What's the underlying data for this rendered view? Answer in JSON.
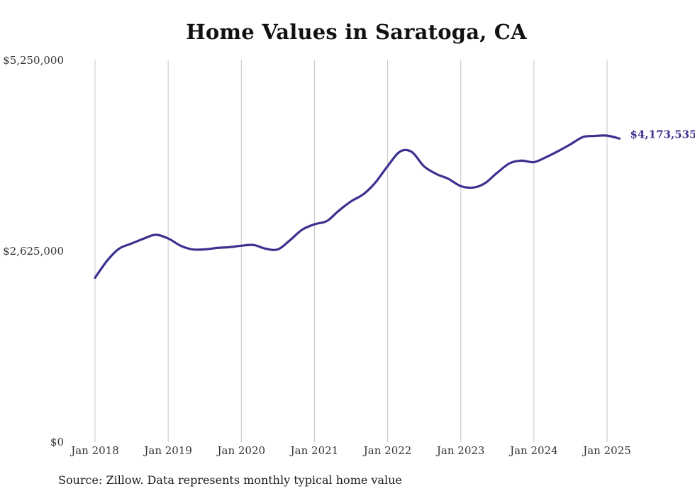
{
  "chart_data": {
    "type": "line",
    "title": "Home Values in Saratoga, CA",
    "xlabel": "",
    "ylabel": "",
    "ylim": [
      0,
      5250000
    ],
    "y_ticks": [
      0,
      2625000,
      5250000
    ],
    "y_tick_labels": [
      "$0",
      "$2,625,000",
      "$5,250,000"
    ],
    "x_ticks": [
      2018,
      2019,
      2020,
      2021,
      2022,
      2023,
      2024,
      2025
    ],
    "x_tick_labels": [
      "Jan 2018",
      "Jan 2019",
      "Jan 2020",
      "Jan 2021",
      "Jan 2022",
      "Jan 2023",
      "Jan 2024",
      "Jan 2025"
    ],
    "grid": "vertical",
    "line_color": "#3b3290",
    "end_label": "$4,173,535",
    "series": [
      {
        "x": [
          2018.0,
          2018.17,
          2018.33,
          2018.5,
          2018.67,
          2018.83,
          2019.0,
          2019.17,
          2019.33,
          2019.5,
          2019.67,
          2019.83,
          2020.0,
          2020.17,
          2020.33,
          2020.5,
          2020.67,
          2020.83,
          2021.0,
          2021.17,
          2021.33,
          2021.5,
          2021.67,
          2021.83,
          2022.0,
          2022.17,
          2022.33,
          2022.5,
          2022.67,
          2022.83,
          2023.0,
          2023.17,
          2023.33,
          2023.5,
          2023.67,
          2023.83,
          2024.0,
          2024.17,
          2024.33,
          2024.5,
          2024.67,
          2024.83,
          2025.0,
          2025.17
        ],
        "values": [
          2260000,
          2500000,
          2660000,
          2730000,
          2800000,
          2850000,
          2800000,
          2700000,
          2650000,
          2650000,
          2670000,
          2680000,
          2700000,
          2710000,
          2660000,
          2650000,
          2780000,
          2920000,
          2995000,
          3040000,
          3180000,
          3310000,
          3410000,
          3565000,
          3795000,
          3995000,
          3990000,
          3790000,
          3685000,
          3620000,
          3520000,
          3500000,
          3560000,
          3705000,
          3835000,
          3870000,
          3850000,
          3920000,
          4000000,
          4095000,
          4195000,
          4210000,
          4215000,
          4173535
        ]
      }
    ],
    "source": "Source: Zillow. Data represents monthly typical home value"
  }
}
